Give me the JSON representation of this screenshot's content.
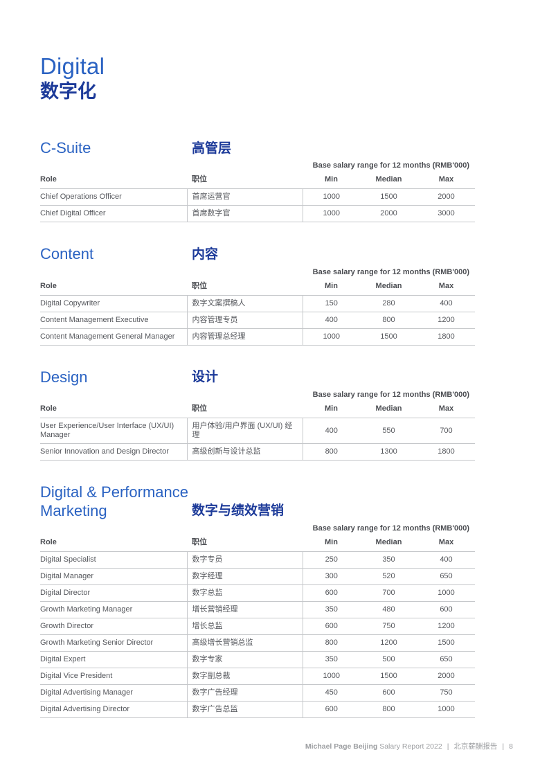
{
  "page": {
    "title_en": "Digital",
    "title_zh": "数字化"
  },
  "table_meta": {
    "subtitle": "Base salary range for 12 months (RMB'000)",
    "headers": {
      "role": "Role",
      "role_zh": "职位",
      "min": "Min",
      "median": "Median",
      "max": "Max"
    }
  },
  "sections": [
    {
      "title_en": "C-Suite",
      "title_zh": "高管层",
      "rows": [
        {
          "role": "Chief Operations Officer",
          "role_zh": "首席运营官",
          "min": "1000",
          "median": "1500",
          "max": "2000"
        },
        {
          "role": "Chief Digital Officer",
          "role_zh": "首席数字官",
          "min": "1000",
          "median": "2000",
          "max": "3000"
        }
      ]
    },
    {
      "title_en": "Content",
      "title_zh": "内容",
      "rows": [
        {
          "role": "Digital Copywriter",
          "role_zh": "数字文案撰稿人",
          "min": "150",
          "median": "280",
          "max": "400"
        },
        {
          "role": "Content Management Executive",
          "role_zh": "内容管理专员",
          "min": "400",
          "median": "800",
          "max": "1200"
        },
        {
          "role": "Content Management General Manager",
          "role_zh": "内容管理总经理",
          "min": "1000",
          "median": "1500",
          "max": "1800"
        }
      ]
    },
    {
      "title_en": "Design",
      "title_zh": "设计",
      "rows": [
        {
          "role": "User Experience/User Interface (UX/UI) Manager",
          "role_zh": "用户体验/用户界面 (UX/UI) 经理",
          "min": "400",
          "median": "550",
          "max": "700"
        },
        {
          "role": "Senior Innovation and Design Director",
          "role_zh": "高级创新与设计总监",
          "min": "800",
          "median": "1300",
          "max": "1800"
        }
      ]
    },
    {
      "title_en": "Digital & Performance Marketing",
      "title_zh": "数字与绩效营销",
      "rows": [
        {
          "role": "Digital Specialist",
          "role_zh": "数字专员",
          "min": "250",
          "median": "350",
          "max": "400"
        },
        {
          "role": "Digital Manager",
          "role_zh": "数字经理",
          "min": "300",
          "median": "520",
          "max": "650"
        },
        {
          "role": "Digital Director",
          "role_zh": "数字总监",
          "min": "600",
          "median": "700",
          "max": "1000"
        },
        {
          "role": "Growth Marketing Manager",
          "role_zh": "增长营销经理",
          "min": "350",
          "median": "480",
          "max": "600"
        },
        {
          "role": "Growth Director",
          "role_zh": "增长总监",
          "min": "600",
          "median": "750",
          "max": "1200"
        },
        {
          "role": "Growth Marketing Senior Director",
          "role_zh": "高级增长营销总监",
          "min": "800",
          "median": "1200",
          "max": "1500"
        },
        {
          "role": "Digital Expert",
          "role_zh": "数字专家",
          "min": "350",
          "median": "500",
          "max": "650"
        },
        {
          "role": "Digital Vice President",
          "role_zh": "数字副总裁",
          "min": "1000",
          "median": "1500",
          "max": "2000"
        },
        {
          "role": "Digital Advertising Manager",
          "role_zh": "数字广告经理",
          "min": "450",
          "median": "600",
          "max": "750"
        },
        {
          "role": "Digital Advertising Director",
          "role_zh": "数字广告总监",
          "min": "600",
          "median": "800",
          "max": "1000"
        }
      ]
    }
  ],
  "footer": {
    "brand": "Michael Page Beijing",
    "report": "Salary Report 2022",
    "separator": "|",
    "title_zh": "北京薪酬报告",
    "page_number": "8"
  },
  "colors": {
    "title_blue": "#2A62C2",
    "title_navy": "#1C3A99",
    "header_text": "#4B4D52",
    "body_text": "#55575C",
    "table_border": "#C5C7CA",
    "footer_gray": "#9C9EA1"
  }
}
